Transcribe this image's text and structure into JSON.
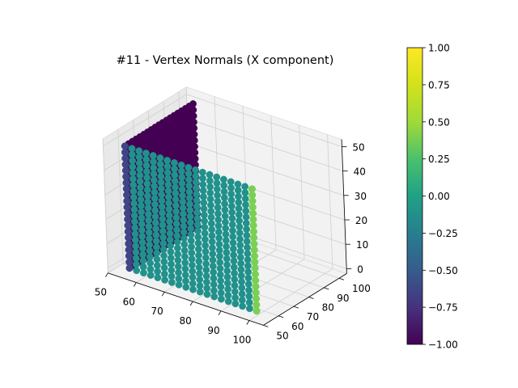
{
  "chart_data": {
    "type": "scatter",
    "projection": "3d",
    "title": "#11 - Vertex Normals (X component)",
    "xlabel": "",
    "ylabel": "",
    "zlabel": "",
    "grid": true,
    "xlim": [
      50,
      105
    ],
    "ylim": [
      50,
      105
    ],
    "zlim": [
      -2,
      53
    ],
    "x_ticks": [
      "50",
      "60",
      "70",
      "80",
      "90",
      "100"
    ],
    "y_ticks": [
      "50",
      "60",
      "70",
      "80",
      "90",
      "100"
    ],
    "z_ticks": [
      "0",
      "10",
      "20",
      "30",
      "40",
      "50"
    ],
    "color_by": "normal_x",
    "colormap": "viridis",
    "colorbar": {
      "min": -1.0,
      "max": 1.0,
      "ticks": [
        "−1.00",
        "−0.75",
        "−0.50",
        "−0.25",
        "0.00",
        "0.25",
        "0.50",
        "0.75",
        "1.00"
      ]
    },
    "series": [
      {
        "surface": "plane_x_const",
        "x": 55,
        "y_range": [
          55,
          100
        ],
        "z_range": [
          0,
          50
        ],
        "normal_x": -1.0,
        "color": "#440154"
      },
      {
        "surface": "plane_y_const",
        "y": 55,
        "x_range": [
          55,
          100
        ],
        "z_range": [
          0,
          50
        ],
        "normal_x": 0.0,
        "color": "#21918c"
      },
      {
        "surface": "edge_x_max",
        "x": 100,
        "y": 55,
        "z_range": [
          0,
          50
        ],
        "normal_x": 0.62,
        "color": "#7ad151"
      },
      {
        "surface": "edge_x_min",
        "x": 55,
        "y": 55,
        "z_range": [
          0,
          50
        ],
        "normal_x": -0.62,
        "color": "#414487"
      }
    ]
  }
}
